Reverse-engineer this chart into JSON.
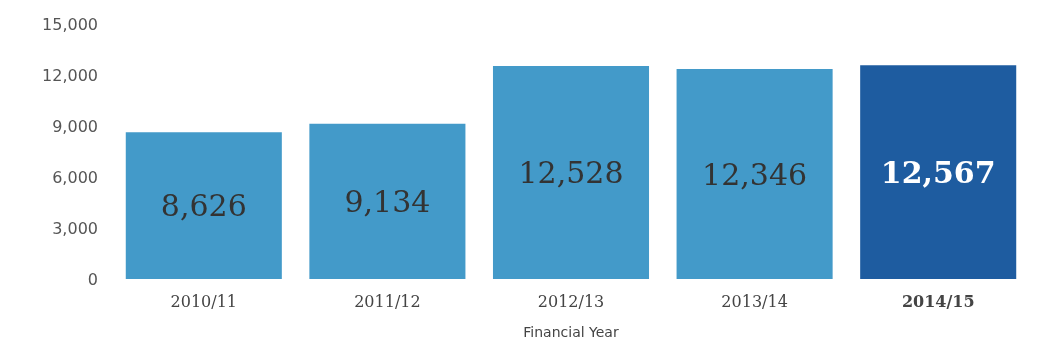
{
  "chart_data": {
    "type": "bar",
    "xlabel": "Financial Year",
    "categories": [
      "2010/11",
      "2011/12",
      "2012/13",
      "2013/14",
      "2014/15"
    ],
    "values": [
      8626,
      9134,
      12528,
      12346,
      12567
    ],
    "colors": [
      "#439ac9",
      "#439ac9",
      "#439ac9",
      "#439ac9",
      "#1e5ca0"
    ],
    "ylim": [
      0,
      15000
    ],
    "yticks": [
      {
        "value": 0,
        "label": "0"
      },
      {
        "value": 3000,
        "label": "3,000"
      },
      {
        "value": 6000,
        "label": "6,000"
      },
      {
        "value": 9000,
        "label": "9,000"
      },
      {
        "value": 12000,
        "label": "12,000"
      },
      {
        "value": 15000,
        "label": "15,000"
      }
    ],
    "value_labels": [
      "8,626",
      "9,134",
      "12,528",
      "12,346",
      "12,567"
    ],
    "grid": false
  }
}
